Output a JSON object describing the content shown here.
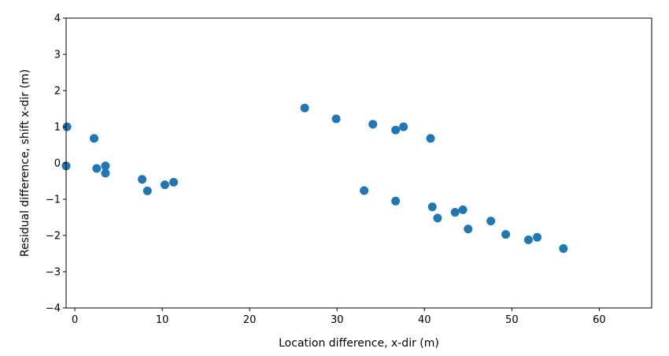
{
  "chart_data": {
    "type": "scatter",
    "title": "",
    "xlabel": "Location difference, x-dir (m)",
    "ylabel": "Residual difference, shift x-dir (m)",
    "xlim": [
      -1,
      66
    ],
    "ylim": [
      -4,
      4
    ],
    "xticks": [
      0,
      10,
      20,
      30,
      40,
      50,
      60
    ],
    "yticks": [
      -4,
      -3,
      -2,
      -1,
      0,
      1,
      2,
      3,
      4
    ],
    "grid": false,
    "legend": "none",
    "marker_color": "#1f77b4",
    "points": [
      {
        "x": -0.9,
        "y": 1.0
      },
      {
        "x": -1.0,
        "y": -0.08
      },
      {
        "x": 2.2,
        "y": 0.68
      },
      {
        "x": 2.5,
        "y": -0.15
      },
      {
        "x": 3.5,
        "y": -0.08
      },
      {
        "x": 3.5,
        "y": -0.28
      },
      {
        "x": 7.7,
        "y": -0.45
      },
      {
        "x": 8.3,
        "y": -0.77
      },
      {
        "x": 10.3,
        "y": -0.6
      },
      {
        "x": 11.3,
        "y": -0.53
      },
      {
        "x": 26.3,
        "y": 1.52
      },
      {
        "x": 29.9,
        "y": 1.22
      },
      {
        "x": 34.1,
        "y": 1.07
      },
      {
        "x": 36.7,
        "y": 0.91
      },
      {
        "x": 37.6,
        "y": 1.0
      },
      {
        "x": 40.7,
        "y": 0.68
      },
      {
        "x": 33.1,
        "y": -0.76
      },
      {
        "x": 36.7,
        "y": -1.05
      },
      {
        "x": 40.9,
        "y": -1.21
      },
      {
        "x": 41.5,
        "y": -1.52
      },
      {
        "x": 43.5,
        "y": -1.36
      },
      {
        "x": 44.4,
        "y": -1.29
      },
      {
        "x": 45.0,
        "y": -1.82
      },
      {
        "x": 47.6,
        "y": -1.6
      },
      {
        "x": 49.3,
        "y": -1.97
      },
      {
        "x": 51.9,
        "y": -2.12
      },
      {
        "x": 52.9,
        "y": -2.05
      },
      {
        "x": 55.9,
        "y": -2.36
      }
    ]
  }
}
